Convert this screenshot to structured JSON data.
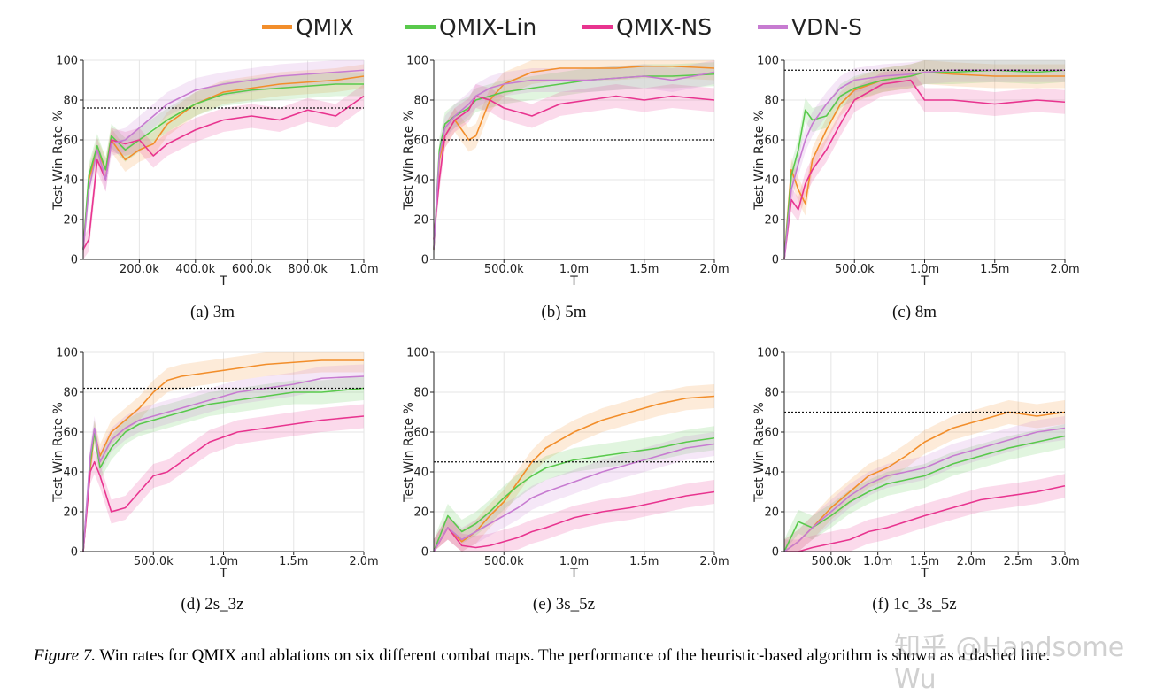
{
  "legend": [
    {
      "name": "QMIX",
      "color": "#f28e2b"
    },
    {
      "name": "QMIX-Lin",
      "color": "#59c94c"
    },
    {
      "name": "QMIX-NS",
      "color": "#e8348f"
    },
    {
      "name": "VDN-S",
      "color": "#c77bd1"
    }
  ],
  "caption": {
    "label": "Figure 7.",
    "text": " Win rates for QMIX and ablations on six different combat maps. The performance of the heuristic-based algorithm is shown as a dashed line."
  },
  "watermark": "知乎 @Handsome Wu",
  "chart_data": [
    {
      "type": "line",
      "sublabel": "(a)  3m",
      "xlabel": "T",
      "ylabel": "Test Win Rate %",
      "xlim": [
        0,
        1000000
      ],
      "ylim": [
        0,
        100
      ],
      "xticks": [
        200000,
        400000,
        600000,
        800000,
        1000000
      ],
      "xtick_labels": [
        "200.0k",
        "400.0k",
        "600.0k",
        "800.0k",
        "1.0m"
      ],
      "yticks": [
        0,
        20,
        40,
        60,
        80,
        100
      ],
      "heuristic": 76,
      "series": [
        {
          "name": "QMIX",
          "x": [
            0,
            20000,
            50000,
            80000,
            100000,
            150000,
            200000,
            250000,
            300000,
            400000,
            500000,
            600000,
            700000,
            800000,
            900000,
            1000000
          ],
          "y": [
            5,
            40,
            55,
            45,
            60,
            50,
            55,
            58,
            68,
            78,
            84,
            86,
            88,
            89,
            90,
            92
          ]
        },
        {
          "name": "QMIX-Lin",
          "x": [
            0,
            20000,
            50000,
            80000,
            100000,
            150000,
            200000,
            250000,
            300000,
            400000,
            500000,
            600000,
            700000,
            800000,
            900000,
            1000000
          ],
          "y": [
            5,
            42,
            57,
            45,
            62,
            55,
            60,
            65,
            70,
            78,
            83,
            85,
            86,
            87,
            88,
            88
          ]
        },
        {
          "name": "QMIX-NS",
          "x": [
            0,
            20000,
            50000,
            80000,
            100000,
            150000,
            200000,
            250000,
            300000,
            400000,
            500000,
            600000,
            700000,
            800000,
            900000,
            1000000
          ],
          "y": [
            5,
            10,
            50,
            40,
            60,
            58,
            60,
            52,
            58,
            65,
            70,
            72,
            70,
            75,
            72,
            82
          ]
        },
        {
          "name": "VDN-S",
          "x": [
            0,
            20000,
            50000,
            80000,
            100000,
            150000,
            200000,
            250000,
            300000,
            400000,
            500000,
            600000,
            700000,
            800000,
            900000,
            1000000
          ],
          "y": [
            5,
            35,
            55,
            40,
            58,
            60,
            66,
            72,
            78,
            85,
            88,
            90,
            92,
            93,
            94,
            95
          ]
        }
      ]
    },
    {
      "type": "line",
      "sublabel": "(b)  5m",
      "xlabel": "T",
      "ylabel": "Test Win Rate %",
      "xlim": [
        0,
        2000000
      ],
      "ylim": [
        0,
        100
      ],
      "xticks": [
        500000,
        1000000,
        1500000,
        2000000
      ],
      "xtick_labels": [
        "500.0k",
        "1.0m",
        "1.5m",
        "2.0m"
      ],
      "yticks": [
        0,
        20,
        40,
        60,
        80,
        100
      ],
      "heuristic": 60,
      "series": [
        {
          "name": "QMIX",
          "x": [
            0,
            40000,
            80000,
            150000,
            250000,
            300000,
            400000,
            500000,
            700000,
            900000,
            1100000,
            1300000,
            1500000,
            1700000,
            2000000
          ],
          "y": [
            5,
            50,
            62,
            70,
            60,
            62,
            80,
            88,
            94,
            96,
            96,
            96,
            97,
            97,
            96
          ]
        },
        {
          "name": "QMIX-Lin",
          "x": [
            0,
            40000,
            80000,
            150000,
            250000,
            300000,
            400000,
            500000,
            700000,
            900000,
            1100000,
            1300000,
            1500000,
            1700000,
            2000000
          ],
          "y": [
            5,
            55,
            68,
            72,
            76,
            80,
            82,
            84,
            86,
            88,
            90,
            91,
            92,
            92,
            93
          ]
        },
        {
          "name": "QMIX-NS",
          "x": [
            0,
            40000,
            80000,
            150000,
            250000,
            300000,
            400000,
            500000,
            700000,
            900000,
            1100000,
            1300000,
            1500000,
            1700000,
            2000000
          ],
          "y": [
            10,
            40,
            62,
            70,
            75,
            82,
            80,
            76,
            72,
            78,
            80,
            82,
            80,
            82,
            80
          ]
        },
        {
          "name": "VDN-S",
          "x": [
            0,
            40000,
            80000,
            150000,
            250000,
            300000,
            400000,
            500000,
            700000,
            900000,
            1100000,
            1300000,
            1500000,
            1700000,
            2000000
          ],
          "y": [
            5,
            52,
            66,
            72,
            78,
            82,
            86,
            88,
            90,
            90,
            90,
            91,
            92,
            90,
            94
          ]
        }
      ]
    },
    {
      "type": "line",
      "sublabel": "(c)  8m",
      "xlabel": "T",
      "ylabel": "Test Win Rate %",
      "xlim": [
        0,
        2000000
      ],
      "ylim": [
        0,
        100
      ],
      "xticks": [
        500000,
        1000000,
        1500000,
        2000000
      ],
      "xtick_labels": [
        "500.0k",
        "1.0m",
        "1.5m",
        "2.0m"
      ],
      "yticks": [
        0,
        20,
        40,
        60,
        80,
        100
      ],
      "heuristic": 95,
      "series": [
        {
          "name": "QMIX",
          "x": [
            0,
            50000,
            100000,
            150000,
            200000,
            300000,
            400000,
            500000,
            700000,
            900000,
            1000000,
            1200000,
            1500000,
            1800000,
            2000000
          ],
          "y": [
            0,
            45,
            35,
            28,
            50,
            65,
            78,
            85,
            90,
            92,
            94,
            93,
            92,
            92,
            92
          ]
        },
        {
          "name": "QMIX-Lin",
          "x": [
            0,
            50000,
            100000,
            150000,
            200000,
            300000,
            400000,
            500000,
            700000,
            900000,
            1000000,
            1200000,
            1500000,
            1800000,
            2000000
          ],
          "y": [
            0,
            42,
            55,
            75,
            70,
            72,
            82,
            86,
            90,
            92,
            94,
            94,
            95,
            94,
            95
          ]
        },
        {
          "name": "QMIX-NS",
          "x": [
            0,
            50000,
            100000,
            150000,
            200000,
            300000,
            400000,
            500000,
            700000,
            900000,
            1000000,
            1200000,
            1500000,
            1800000,
            2000000
          ],
          "y": [
            0,
            30,
            25,
            38,
            45,
            55,
            68,
            80,
            88,
            90,
            80,
            80,
            78,
            80,
            79
          ]
        },
        {
          "name": "VDN-S",
          "x": [
            0,
            50000,
            100000,
            150000,
            200000,
            300000,
            400000,
            500000,
            700000,
            900000,
            1000000,
            1200000,
            1500000,
            1800000,
            2000000
          ],
          "y": [
            0,
            35,
            48,
            60,
            68,
            78,
            86,
            90,
            92,
            93,
            94,
            95,
            95,
            95,
            95
          ]
        }
      ]
    },
    {
      "type": "line",
      "sublabel": "(d)  2s_3z",
      "xlabel": "T",
      "ylabel": "Test Win Rate %",
      "xlim": [
        0,
        2000000
      ],
      "ylim": [
        0,
        100
      ],
      "xticks": [
        500000,
        1000000,
        1500000,
        2000000
      ],
      "xtick_labels": [
        "500.0k",
        "1.0m",
        "1.5m",
        "2.0m"
      ],
      "yticks": [
        0,
        20,
        40,
        60,
        80,
        100
      ],
      "heuristic": 82,
      "series": [
        {
          "name": "QMIX",
          "x": [
            0,
            50000,
            80000,
            120000,
            200000,
            300000,
            400000,
            500000,
            600000,
            700000,
            900000,
            1100000,
            1300000,
            1500000,
            1700000,
            2000000
          ],
          "y": [
            0,
            42,
            60,
            48,
            60,
            66,
            72,
            80,
            86,
            88,
            90,
            92,
            94,
            95,
            96,
            96
          ]
        },
        {
          "name": "QMIX-Lin",
          "x": [
            0,
            50000,
            80000,
            120000,
            200000,
            300000,
            400000,
            500000,
            600000,
            700000,
            900000,
            1100000,
            1300000,
            1500000,
            1700000,
            2000000
          ],
          "y": [
            0,
            45,
            60,
            42,
            52,
            60,
            64,
            66,
            68,
            70,
            74,
            76,
            78,
            80,
            80,
            82
          ]
        },
        {
          "name": "QMIX-NS",
          "x": [
            0,
            50000,
            80000,
            120000,
            200000,
            300000,
            400000,
            500000,
            600000,
            700000,
            900000,
            1100000,
            1300000,
            1500000,
            1700000,
            2000000
          ],
          "y": [
            0,
            40,
            45,
            38,
            20,
            22,
            30,
            38,
            40,
            45,
            55,
            60,
            62,
            64,
            66,
            68
          ]
        },
        {
          "name": "VDN-S",
          "x": [
            0,
            50000,
            80000,
            120000,
            200000,
            300000,
            400000,
            500000,
            600000,
            700000,
            900000,
            1100000,
            1300000,
            1500000,
            1700000,
            2000000
          ],
          "y": [
            0,
            48,
            62,
            45,
            56,
            62,
            66,
            68,
            70,
            72,
            76,
            80,
            82,
            84,
            87,
            88
          ]
        }
      ]
    },
    {
      "type": "line",
      "sublabel": "(e)  3s_5z",
      "xlabel": "T",
      "ylabel": "Test Win Rate %",
      "xlim": [
        0,
        2000000
      ],
      "ylim": [
        0,
        100
      ],
      "xticks": [
        500000,
        1000000,
        1500000,
        2000000
      ],
      "xtick_labels": [
        "500.0k",
        "1.0m",
        "1.5m",
        "2.0m"
      ],
      "yticks": [
        0,
        20,
        40,
        60,
        80,
        100
      ],
      "heuristic": 45,
      "series": [
        {
          "name": "QMIX",
          "x": [
            0,
            100000,
            200000,
            300000,
            400000,
            500000,
            600000,
            700000,
            800000,
            1000000,
            1200000,
            1400000,
            1600000,
            1800000,
            2000000
          ],
          "y": [
            0,
            12,
            5,
            10,
            18,
            25,
            35,
            45,
            52,
            60,
            66,
            70,
            74,
            77,
            78
          ]
        },
        {
          "name": "QMIX-Lin",
          "x": [
            0,
            100000,
            200000,
            300000,
            400000,
            500000,
            600000,
            700000,
            800000,
            1000000,
            1200000,
            1400000,
            1600000,
            1800000,
            2000000
          ],
          "y": [
            0,
            18,
            10,
            14,
            20,
            27,
            33,
            38,
            42,
            46,
            48,
            50,
            52,
            55,
            57
          ]
        },
        {
          "name": "QMIX-NS",
          "x": [
            0,
            100000,
            200000,
            300000,
            400000,
            500000,
            600000,
            700000,
            800000,
            1000000,
            1200000,
            1400000,
            1600000,
            1800000,
            2000000
          ],
          "y": [
            0,
            12,
            3,
            2,
            3,
            5,
            7,
            10,
            12,
            17,
            20,
            22,
            25,
            28,
            30
          ]
        },
        {
          "name": "VDN-S",
          "x": [
            0,
            100000,
            200000,
            300000,
            400000,
            500000,
            600000,
            700000,
            800000,
            1000000,
            1200000,
            1400000,
            1600000,
            1800000,
            2000000
          ],
          "y": [
            0,
            12,
            6,
            10,
            14,
            18,
            22,
            27,
            30,
            35,
            40,
            44,
            48,
            52,
            54
          ]
        }
      ]
    },
    {
      "type": "line",
      "sublabel": "(f)  1c_3s_5z",
      "xlabel": "T",
      "ylabel": "Test Win Rate %",
      "xlim": [
        0,
        3000000
      ],
      "ylim": [
        0,
        100
      ],
      "xticks": [
        500000,
        1000000,
        1500000,
        2000000,
        2500000,
        3000000
      ],
      "xtick_labels": [
        "500.0k",
        "1.0m",
        "1.5m",
        "2.0m",
        "2.5m",
        "3.0m"
      ],
      "yticks": [
        0,
        20,
        40,
        60,
        80,
        100
      ],
      "heuristic": 70,
      "series": [
        {
          "name": "QMIX",
          "x": [
            0,
            150000,
            300000,
            500000,
            700000,
            900000,
            1100000,
            1300000,
            1500000,
            1800000,
            2100000,
            2400000,
            2700000,
            3000000
          ],
          "y": [
            0,
            5,
            12,
            22,
            30,
            38,
            42,
            48,
            55,
            62,
            66,
            70,
            68,
            70
          ]
        },
        {
          "name": "QMIX-Lin",
          "x": [
            0,
            150000,
            300000,
            500000,
            700000,
            900000,
            1100000,
            1300000,
            1500000,
            1800000,
            2100000,
            2400000,
            2700000,
            3000000
          ],
          "y": [
            0,
            15,
            12,
            18,
            25,
            30,
            34,
            36,
            38,
            44,
            48,
            52,
            55,
            58
          ]
        },
        {
          "name": "QMIX-NS",
          "x": [
            0,
            150000,
            300000,
            500000,
            700000,
            900000,
            1100000,
            1300000,
            1500000,
            1800000,
            2100000,
            2400000,
            2700000,
            3000000
          ],
          "y": [
            0,
            0,
            2,
            4,
            6,
            10,
            12,
            15,
            18,
            22,
            26,
            28,
            30,
            33
          ]
        },
        {
          "name": "VDN-S",
          "x": [
            0,
            150000,
            300000,
            500000,
            700000,
            900000,
            1100000,
            1300000,
            1500000,
            1800000,
            2100000,
            2400000,
            2700000,
            3000000
          ],
          "y": [
            0,
            5,
            12,
            20,
            28,
            34,
            38,
            40,
            42,
            48,
            52,
            56,
            60,
            62
          ]
        }
      ]
    }
  ]
}
